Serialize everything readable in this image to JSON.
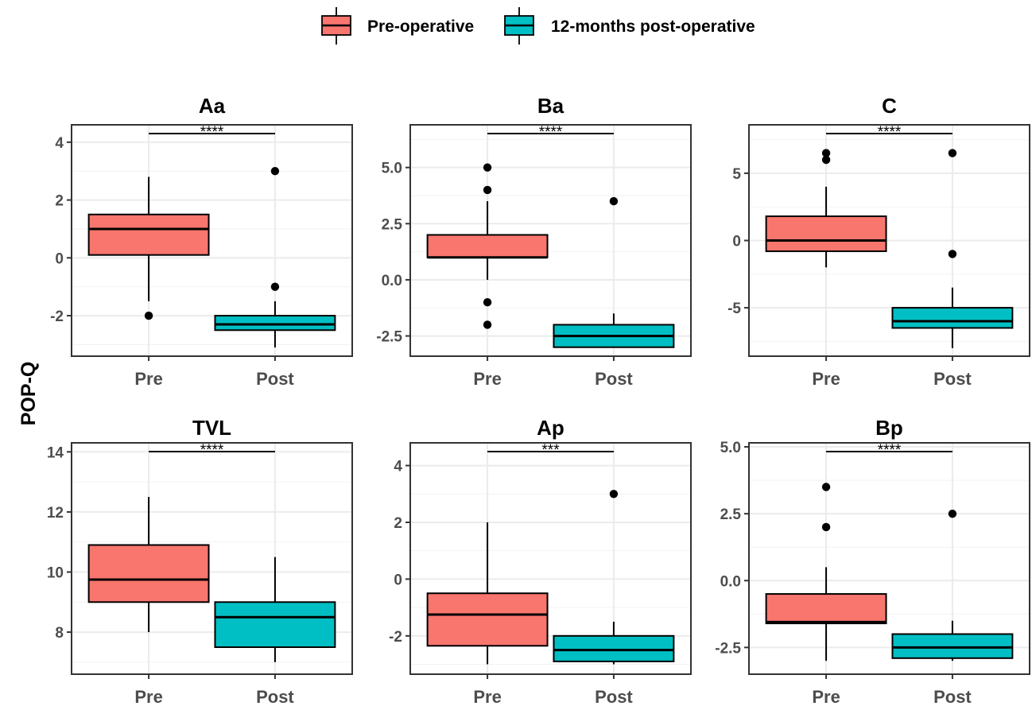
{
  "legend": {
    "items": [
      {
        "label": "Pre-operative",
        "color": "#F8766D"
      },
      {
        "label": "12-months post-operative",
        "color": "#00BFC4"
      }
    ],
    "position": "top"
  },
  "ylabel": "POP-Q",
  "chart_data": [
    {
      "type": "box",
      "title": "Aa",
      "categories": [
        "Pre",
        "Post"
      ],
      "ylim": [
        -3.4,
        4.6
      ],
      "yticks": [
        -2,
        0,
        2,
        4
      ],
      "ytick_labels": [
        "-2",
        "0",
        "2",
        "4"
      ],
      "grid": true,
      "significance": "****",
      "boxes": [
        {
          "name": "Pre",
          "min": -1.5,
          "q1": 0.1,
          "median": 1.0,
          "q3": 1.5,
          "max": 2.8,
          "outliers": [
            -2.0
          ]
        },
        {
          "name": "Post",
          "min": -3.1,
          "q1": -2.5,
          "median": -2.3,
          "q3": -2.0,
          "max": -1.5,
          "outliers": [
            3.0,
            -1.0
          ]
        }
      ]
    },
    {
      "type": "box",
      "title": "Ba",
      "categories": [
        "Pre",
        "Post"
      ],
      "ylim": [
        -3.4,
        6.9
      ],
      "yticks": [
        -2.5,
        0.0,
        2.5,
        5.0
      ],
      "ytick_labels": [
        "-2.5",
        "0.0",
        "2.5",
        "5.0"
      ],
      "grid": true,
      "significance": "****",
      "boxes": [
        {
          "name": "Pre",
          "min": 0.0,
          "q1": 1.0,
          "median": 1.0,
          "q3": 2.0,
          "max": 3.5,
          "outliers": [
            5.0,
            4.0,
            -1.0,
            -2.0
          ]
        },
        {
          "name": "Post",
          "min": -3.0,
          "q1": -3.0,
          "median": -2.5,
          "q3": -2.0,
          "max": -1.5,
          "outliers": [
            3.5
          ]
        }
      ]
    },
    {
      "type": "box",
      "title": "C",
      "categories": [
        "Pre",
        "Post"
      ],
      "ylim": [
        -8.6,
        8.6
      ],
      "yticks": [
        -5,
        0,
        5
      ],
      "ytick_labels": [
        "-5",
        "0",
        "5"
      ],
      "grid": true,
      "significance": "****",
      "boxes": [
        {
          "name": "Pre",
          "min": -2.0,
          "q1": -0.8,
          "median": 0.0,
          "q3": 1.8,
          "max": 4.0,
          "outliers": [
            6.5,
            6.0
          ]
        },
        {
          "name": "Post",
          "min": -8.0,
          "q1": -6.5,
          "median": -6.0,
          "q3": -5.0,
          "max": -3.5,
          "outliers": [
            6.5,
            -1.0
          ]
        }
      ]
    },
    {
      "type": "box",
      "title": "TVL",
      "categories": [
        "Pre",
        "Post"
      ],
      "ylim": [
        6.6,
        14.3
      ],
      "yticks": [
        8,
        10,
        12,
        14
      ],
      "ytick_labels": [
        "8",
        "10",
        "12",
        "14"
      ],
      "grid": true,
      "significance": "****",
      "boxes": [
        {
          "name": "Pre",
          "min": 8.0,
          "q1": 9.0,
          "median": 9.75,
          "q3": 10.9,
          "max": 12.5,
          "outliers": []
        },
        {
          "name": "Post",
          "min": 7.0,
          "q1": 7.5,
          "median": 8.5,
          "q3": 9.0,
          "max": 10.5,
          "outliers": []
        }
      ]
    },
    {
      "type": "box",
      "title": "Ap",
      "categories": [
        "Pre",
        "Post"
      ],
      "ylim": [
        -3.35,
        4.8
      ],
      "yticks": [
        -2,
        0,
        2,
        4
      ],
      "ytick_labels": [
        "-2",
        "0",
        "2",
        "4"
      ],
      "grid": true,
      "significance": "***",
      "boxes": [
        {
          "name": "Pre",
          "min": -3.0,
          "q1": -2.35,
          "median": -1.25,
          "q3": -0.5,
          "max": 2.0,
          "outliers": []
        },
        {
          "name": "Post",
          "min": -3.0,
          "q1": -2.9,
          "median": -2.5,
          "q3": -2.0,
          "max": -1.5,
          "outliers": [
            3.0
          ]
        }
      ]
    },
    {
      "type": "box",
      "title": "Bp",
      "categories": [
        "Pre",
        "Post"
      ],
      "ylim": [
        -3.5,
        5.15
      ],
      "yticks": [
        -2.5,
        0.0,
        2.5,
        5.0
      ],
      "ytick_labels": [
        "-2.5",
        "0.0",
        "2.5",
        "5.0"
      ],
      "grid": true,
      "significance": "****",
      "boxes": [
        {
          "name": "Pre",
          "min": -3.0,
          "q1": -1.6,
          "median": -1.55,
          "q3": -0.5,
          "max": 0.5,
          "outliers": [
            3.5,
            2.0
          ]
        },
        {
          "name": "Post",
          "min": -3.0,
          "q1": -2.9,
          "median": -2.5,
          "q3": -2.0,
          "max": -1.5,
          "outliers": [
            2.5
          ]
        }
      ]
    }
  ]
}
